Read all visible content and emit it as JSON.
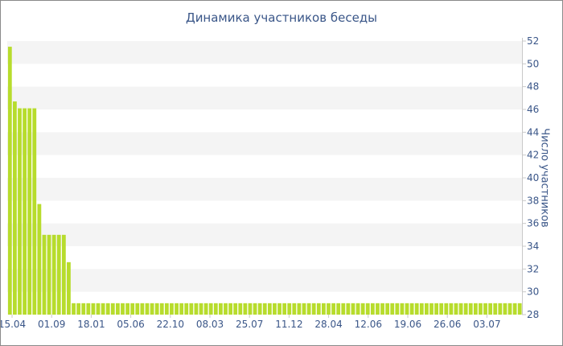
{
  "chart_data": {
    "type": "bar",
    "title": "Динамика участников беседы",
    "ylabel": "Число участников",
    "xlabel": "",
    "ylim": [
      28,
      52
    ],
    "y_ticks": [
      28,
      30,
      32,
      34,
      36,
      38,
      40,
      42,
      44,
      46,
      48,
      50,
      52
    ],
    "x_tick_labels": [
      "15.04",
      "01.09",
      "18.01",
      "05.06",
      "22.10",
      "08.03",
      "25.07",
      "11.12",
      "28.04",
      "12.06",
      "19.06",
      "26.06",
      "03.07"
    ],
    "y_axis_position": "right",
    "grid": "horizontal bands",
    "bar_color": "#b7dc2c",
    "values": [
      51.5,
      46.7,
      46.1,
      46.1,
      46.1,
      46.1,
      37.7,
      35.0,
      35.0,
      35.0,
      35.0,
      35.0,
      32.6,
      29.0,
      29.0,
      29.0,
      29.0,
      29.0,
      29.0,
      29.0,
      29.0,
      29.0,
      29.0,
      29.0,
      29.0,
      29.0,
      29.0,
      29.0,
      29.0,
      29.0,
      29.0,
      29.0,
      29.0,
      29.0,
      29.0,
      29.0,
      29.0,
      29.0,
      29.0,
      29.0,
      29.0,
      29.0,
      29.0,
      29.0,
      29.0,
      29.0,
      29.0,
      29.0,
      29.0,
      29.0,
      29.0,
      29.0,
      29.0,
      29.0,
      29.0,
      29.0,
      29.0,
      29.0,
      29.0,
      29.0,
      29.0,
      29.0,
      29.0,
      29.0,
      29.0,
      29.0,
      29.0,
      29.0,
      29.0,
      29.0,
      29.0,
      29.0,
      29.0,
      29.0,
      29.0,
      29.0,
      29.0,
      29.0,
      29.0,
      29.0,
      29.0,
      29.0,
      29.0,
      29.0,
      29.0,
      29.0,
      29.0,
      29.0,
      29.0,
      29.0,
      29.0,
      29.0,
      29.0,
      29.0,
      29.0,
      29.0,
      29.0,
      29.0,
      29.0,
      29.0,
      29.0,
      29.0,
      29.0,
      29.0,
      29.0
    ]
  }
}
